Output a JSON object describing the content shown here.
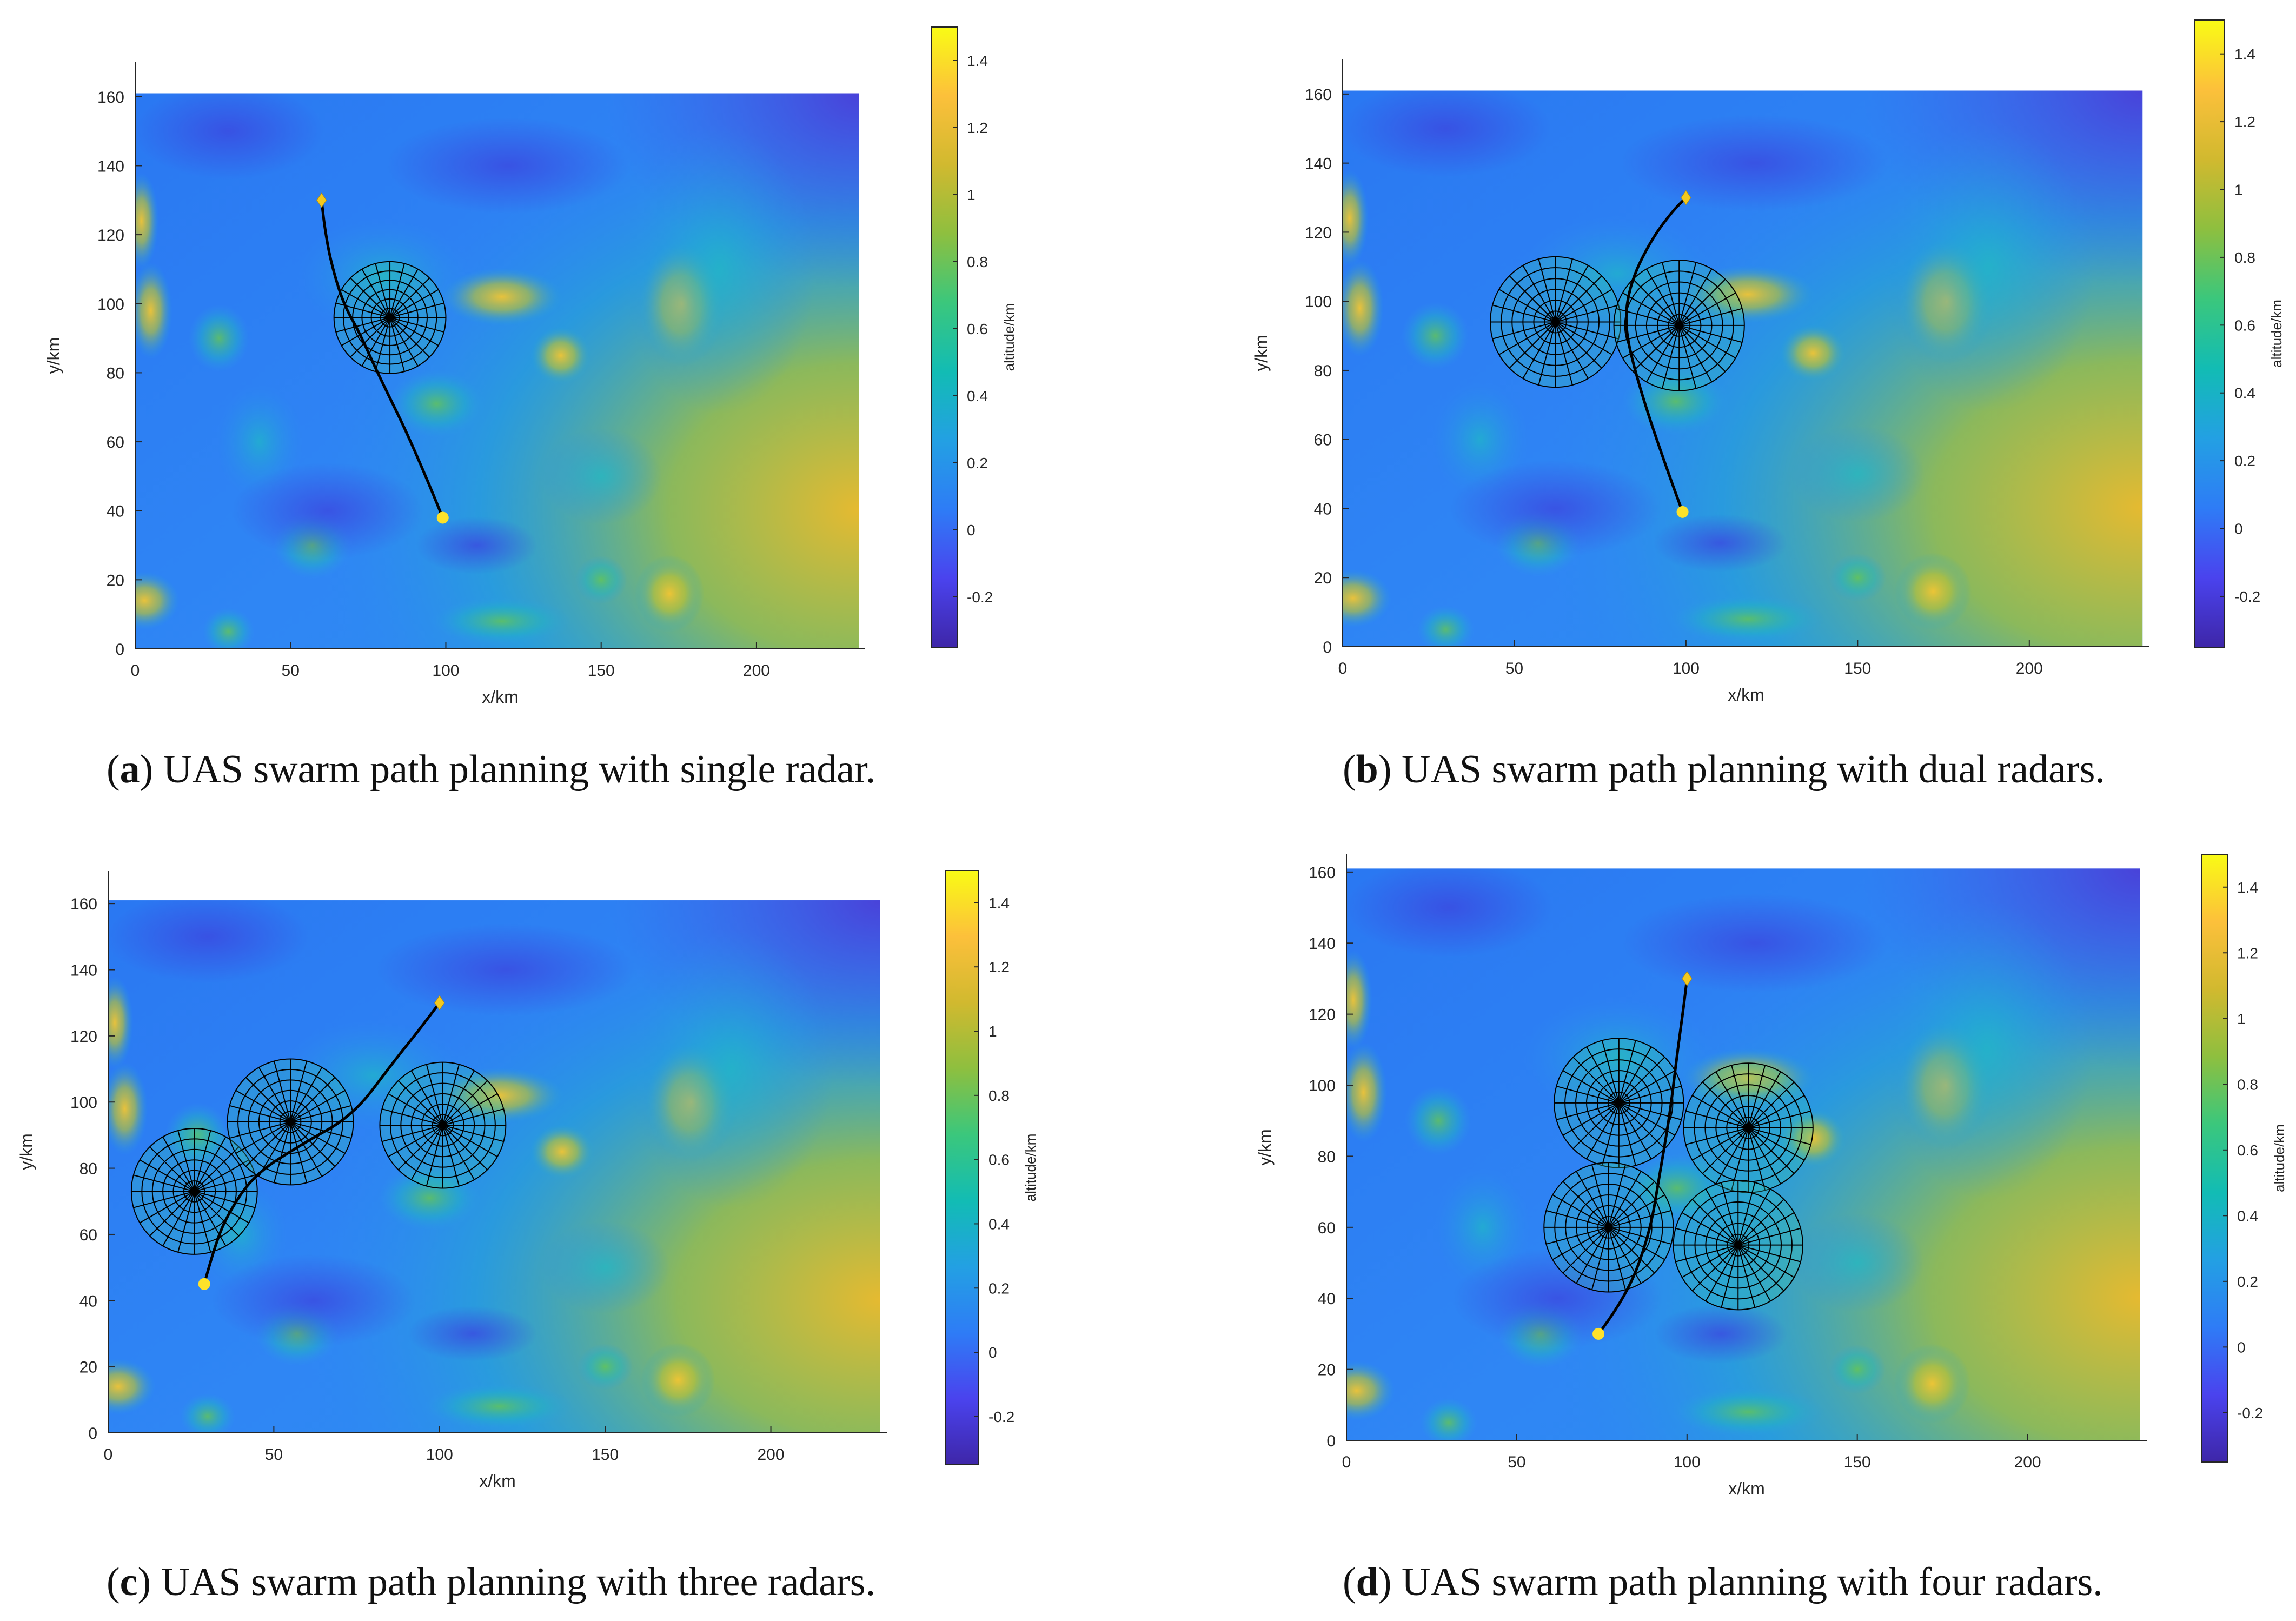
{
  "figure": {
    "captions": [
      {
        "letter": "a",
        "text": ") UAS swarm path planning with single radar."
      },
      {
        "letter": "b",
        "text": ") UAS swarm path planning with dual radars."
      },
      {
        "letter": "c",
        "text": ") UAS swarm path planning with three radars."
      },
      {
        "letter": "d",
        "text": ") UAS swarm path planning with four radars."
      }
    ]
  },
  "colors": {
    "colormap": [
      "#3e26a8",
      "#4a43ee",
      "#2e7cf6",
      "#23a0e3",
      "#12bcb4",
      "#3bc77c",
      "#8ebf3f",
      "#d1b92f",
      "#fcc03b",
      "#f9fb15"
    ],
    "start_marker": "#fde22a",
    "goal_marker": "#f3c91f",
    "path": "#000000",
    "radar_mesh": "#000000"
  },
  "chart_data": [
    {
      "type": "heatmap",
      "panel": "a",
      "xlabel": "x/km",
      "ylabel": "y/km",
      "xlim": [
        0,
        235
      ],
      "ylim": [
        0,
        170
      ],
      "xticks": [
        0,
        50,
        100,
        150,
        200
      ],
      "yticks": [
        0,
        20,
        40,
        60,
        80,
        100,
        120,
        140,
        160
      ],
      "map_extent": {
        "x": [
          0,
          233
        ],
        "y": [
          0,
          161
        ]
      },
      "colorbar": {
        "label": "altitude/km",
        "range": [
          -0.35,
          1.5
        ],
        "ticks": [
          1.4,
          1.2,
          1,
          0.8,
          0.6,
          0.4,
          0.2,
          0,
          -0.2
        ]
      },
      "radars": [
        {
          "x": 82,
          "y": 96,
          "r": 18
        }
      ],
      "start": {
        "x": 99,
        "y": 38
      },
      "goal": {
        "x": 60,
        "y": 130
      },
      "path": [
        [
          99,
          38
        ],
        [
          90,
          58
        ],
        [
          78,
          80
        ],
        [
          72,
          92
        ],
        [
          67,
          100
        ],
        [
          63,
          112
        ],
        [
          61,
          122
        ],
        [
          60,
          130
        ]
      ]
    },
    {
      "type": "heatmap",
      "panel": "b",
      "xlabel": "x/km",
      "ylabel": "y/km",
      "xlim": [
        0,
        235
      ],
      "ylim": [
        0,
        170
      ],
      "xticks": [
        0,
        50,
        100,
        150,
        200
      ],
      "yticks": [
        0,
        20,
        40,
        60,
        80,
        100,
        120,
        140,
        160
      ],
      "map_extent": {
        "x": [
          0,
          233
        ],
        "y": [
          0,
          161
        ]
      },
      "colorbar": {
        "label": "altitude/km",
        "range": [
          -0.35,
          1.5
        ],
        "ticks": [
          1.4,
          1.2,
          1,
          0.8,
          0.6,
          0.4,
          0.2,
          0,
          -0.2
        ]
      },
      "radars": [
        {
          "x": 62,
          "y": 94,
          "r": 19
        },
        {
          "x": 98,
          "y": 93,
          "r": 19
        }
      ],
      "start": {
        "x": 99,
        "y": 39
      },
      "goal": {
        "x": 100,
        "y": 130
      },
      "path": [
        [
          99,
          39
        ],
        [
          92,
          58
        ],
        [
          85,
          80
        ],
        [
          82,
          94
        ],
        [
          84,
          106
        ],
        [
          90,
          118
        ],
        [
          96,
          126
        ],
        [
          100,
          130
        ]
      ]
    },
    {
      "type": "heatmap",
      "panel": "c",
      "xlabel": "x/km",
      "ylabel": "y/km",
      "xlim": [
        0,
        235
      ],
      "ylim": [
        0,
        170
      ],
      "xticks": [
        0,
        50,
        100,
        150,
        200
      ],
      "yticks": [
        0,
        20,
        40,
        60,
        80,
        100,
        120,
        140,
        160
      ],
      "map_extent": {
        "x": [
          0,
          233
        ],
        "y": [
          0,
          161
        ]
      },
      "colorbar": {
        "label": "altitude/km",
        "range": [
          -0.35,
          1.5
        ],
        "ticks": [
          1.4,
          1.2,
          1,
          0.8,
          0.6,
          0.4,
          0.2,
          0,
          -0.2
        ]
      },
      "radars": [
        {
          "x": 26,
          "y": 73,
          "r": 19
        },
        {
          "x": 55,
          "y": 94,
          "r": 19
        },
        {
          "x": 101,
          "y": 93,
          "r": 19
        }
      ],
      "start": {
        "x": 29,
        "y": 45
      },
      "goal": {
        "x": 100,
        "y": 130
      },
      "path": [
        [
          29,
          45
        ],
        [
          32,
          56
        ],
        [
          36,
          66
        ],
        [
          44,
          78
        ],
        [
          58,
          87
        ],
        [
          74,
          96
        ],
        [
          86,
          112
        ],
        [
          94,
          122
        ],
        [
          100,
          130
        ]
      ]
    },
    {
      "type": "heatmap",
      "panel": "d",
      "xlabel": "x/km",
      "ylabel": "y/km",
      "xlim": [
        0,
        235
      ],
      "ylim": [
        0,
        165
      ],
      "xticks": [
        0,
        50,
        100,
        150,
        200
      ],
      "yticks": [
        0,
        20,
        40,
        60,
        80,
        100,
        120,
        140,
        160
      ],
      "map_extent": {
        "x": [
          0,
          233
        ],
        "y": [
          0,
          161
        ]
      },
      "colorbar": {
        "label": "altitude/km",
        "range": [
          -0.35,
          1.5
        ],
        "ticks": [
          1.4,
          1.2,
          1,
          0.8,
          0.6,
          0.4,
          0.2,
          0,
          -0.2
        ]
      },
      "radars": [
        {
          "x": 80,
          "y": 95,
          "r": 19
        },
        {
          "x": 118,
          "y": 88,
          "r": 19
        },
        {
          "x": 77,
          "y": 60,
          "r": 19
        },
        {
          "x": 115,
          "y": 55,
          "r": 19
        }
      ],
      "start": {
        "x": 74,
        "y": 30
      },
      "goal": {
        "x": 100,
        "y": 130
      },
      "path": [
        [
          74,
          30
        ],
        [
          82,
          40
        ],
        [
          89,
          58
        ],
        [
          92,
          75
        ],
        [
          95,
          92
        ],
        [
          97,
          108
        ],
        [
          99,
          122
        ],
        [
          100,
          130
        ]
      ]
    }
  ]
}
